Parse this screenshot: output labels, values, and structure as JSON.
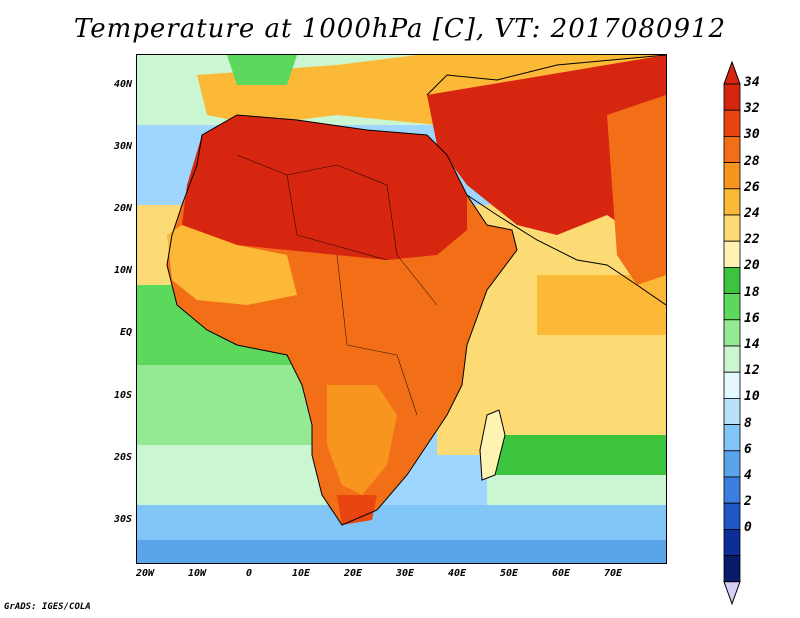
{
  "title": "Temperature at 1000hPa [C], VT: 2017080912",
  "credit": "GrADS: IGES/COLA",
  "y_ticks": [
    "40N",
    "30N",
    "20N",
    "10N",
    "EQ",
    "10S",
    "20S",
    "30S"
  ],
  "x_ticks": [
    "20W",
    "10W",
    "0",
    "10E",
    "20E",
    "30E",
    "40E",
    "50E",
    "60E",
    "70E"
  ],
  "colorbar": {
    "labels": [
      "34",
      "32",
      "30",
      "28",
      "26",
      "24",
      "22",
      "20",
      "18",
      "16",
      "14",
      "12",
      "10",
      "8",
      "6",
      "4",
      "2",
      "0"
    ],
    "colors": [
      "#d7260f",
      "#e84510",
      "#f26f18",
      "#f7951f",
      "#fbb937",
      "#fddb74",
      "#fef3b2",
      "#3cc43e",
      "#5cd95c",
      "#93ea92",
      "#cbf6d2",
      "#e5f7ff",
      "#b8e2fc",
      "#82c5f7",
      "#5aa4ec",
      "#3d7fe0",
      "#1f57c9",
      "#0d2d98",
      "#0a1b6e"
    ],
    "top_color": "#d7260f",
    "bottom_color": "#d4d0f5"
  },
  "colors": {
    "ocean_cool": "#9ed6ff",
    "ocean_warm": "#fef3b2",
    "land_hot": "#d7260f",
    "land_warm": "#f26f18",
    "coast": "#000000"
  }
}
